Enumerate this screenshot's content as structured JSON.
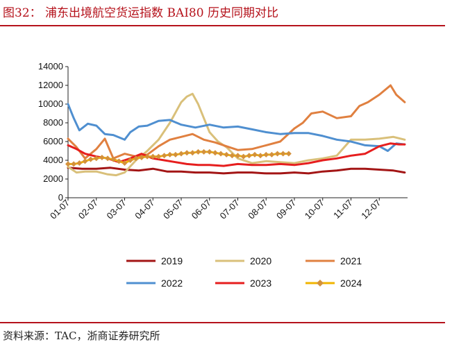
{
  "header": {
    "title": "图32： 浦东出境航空货运指数 BAI80 历史同期对比"
  },
  "footer": {
    "source": "资料来源：TAC，浙商证券研究所"
  },
  "colors": {
    "brand": "#b5121b",
    "s2019": "#a31515",
    "s2020": "#d9c07a",
    "s2021": "#e08040",
    "s2022": "#4f8fd0",
    "s2023": "#e61e1e",
    "s2024": "#f0b400",
    "s2024_marker": "#d4913a"
  },
  "chart_data": {
    "type": "line",
    "title": "浦东出境航空货运指数 BAI80 历史同期对比",
    "xlabel": "",
    "ylabel": "",
    "ylim": [
      0,
      14000
    ],
    "yticks": [
      0,
      2000,
      4000,
      6000,
      8000,
      10000,
      12000,
      14000
    ],
    "ytick_labels": [
      "0",
      "2000",
      "4000",
      "6000",
      "8000",
      "10000",
      "12000",
      "14000"
    ],
    "xlim": [
      1,
      13
    ],
    "xticks": [
      1,
      2,
      3,
      4,
      5,
      6,
      7,
      8,
      9,
      10,
      11,
      12
    ],
    "xtick_labels": [
      "01-07",
      "02-07",
      "03-07",
      "04-07",
      "05-07",
      "06-07",
      "07-07",
      "08-07",
      "09-07",
      "10-07",
      "11-07",
      "12-07"
    ],
    "legend_position": "bottom",
    "series": [
      {
        "name": "2019",
        "color_key": "s2019",
        "x": [
          1,
          1.5,
          2,
          2.5,
          3,
          3.5,
          4,
          4.5,
          5,
          5.5,
          6,
          6.5,
          7,
          7.5,
          8,
          8.5,
          9,
          9.5,
          10,
          10.5,
          11,
          11.5,
          12,
          12.5,
          12.9
        ],
        "values": [
          3200,
          3100,
          3100,
          3200,
          3000,
          2900,
          3100,
          2800,
          2800,
          2700,
          2700,
          2600,
          2700,
          2700,
          2600,
          2600,
          2700,
          2600,
          2800,
          2900,
          3100,
          3100,
          3000,
          2900,
          2700
        ]
      },
      {
        "name": "2020",
        "color_key": "s2020",
        "x": [
          1,
          1.3,
          1.6,
          2,
          2.4,
          2.7,
          3,
          3.4,
          3.8,
          4.2,
          4.6,
          5,
          5.2,
          5.4,
          5.6,
          5.8,
          6,
          6.3,
          6.6,
          7,
          7.5,
          8,
          8.5,
          9,
          9.5,
          10,
          10.5,
          11,
          11.5,
          12,
          12.5,
          12.9
        ],
        "values": [
          3300,
          2700,
          2800,
          2800,
          2500,
          2400,
          2700,
          4000,
          5000,
          6200,
          8000,
          10200,
          10800,
          11100,
          10000,
          8500,
          7000,
          6000,
          5400,
          4200,
          3700,
          3900,
          3800,
          3700,
          4000,
          4200,
          4500,
          6200,
          6200,
          6300,
          6500,
          6200
        ]
      },
      {
        "name": "2021",
        "color_key": "s2021",
        "x": [
          1,
          1.3,
          1.6,
          2,
          2.3,
          2.6,
          3,
          3.4,
          3.8,
          4.2,
          4.6,
          5,
          5.4,
          5.8,
          6.2,
          6.6,
          7,
          7.5,
          8,
          8.5,
          9,
          9.3,
          9.6,
          10,
          10.5,
          11,
          11.3,
          11.6,
          12,
          12.4,
          12.6,
          12.9
        ],
        "values": [
          6300,
          5400,
          4200,
          5200,
          6300,
          4200,
          4700,
          4400,
          4600,
          5500,
          6200,
          6500,
          6800,
          6200,
          5900,
          5500,
          5100,
          5200,
          5600,
          6000,
          7400,
          8000,
          9000,
          9200,
          8500,
          8700,
          9800,
          10200,
          11000,
          12000,
          11000,
          10200
        ]
      },
      {
        "name": "2022",
        "color_key": "s2022",
        "x": [
          1,
          1.2,
          1.4,
          1.7,
          2,
          2.3,
          2.6,
          3,
          3.2,
          3.5,
          3.8,
          4.2,
          4.6,
          5,
          5.5,
          6,
          6.5,
          7,
          7.5,
          8,
          8.5,
          9,
          9.5,
          10,
          10.5,
          11,
          11.5,
          12,
          12.3,
          12.6,
          12.9
        ],
        "values": [
          10000,
          8500,
          7200,
          7900,
          7700,
          6800,
          6700,
          6200,
          7000,
          7600,
          7700,
          8200,
          8300,
          7800,
          7500,
          7800,
          7500,
          7600,
          7300,
          7000,
          6800,
          6900,
          6900,
          6600,
          6200,
          6000,
          5600,
          5500,
          5000,
          5800,
          5700
        ]
      },
      {
        "name": "2023",
        "color_key": "s2023",
        "x": [
          1,
          1.3,
          1.6,
          2,
          2.4,
          2.8,
          3.2,
          3.6,
          4,
          4.4,
          4.8,
          5.2,
          5.6,
          6,
          6.5,
          7,
          7.5,
          8,
          8.5,
          9,
          9.5,
          10,
          10.5,
          11,
          11.5,
          12,
          12.4,
          12.7,
          12.9
        ],
        "values": [
          5600,
          5200,
          4700,
          4400,
          4200,
          3800,
          4200,
          4700,
          4200,
          4000,
          3800,
          3600,
          3500,
          3500,
          3400,
          3600,
          3500,
          3500,
          3600,
          3500,
          3700,
          4000,
          4200,
          4500,
          4700,
          5500,
          5800,
          5700,
          5700
        ]
      },
      {
        "name": "2024",
        "color_key": "s2024",
        "marker": "diamond",
        "x": [
          1,
          1.2,
          1.4,
          1.6,
          1.8,
          2,
          2.2,
          2.4,
          2.6,
          2.8,
          3,
          3.2,
          3.4,
          3.6,
          3.8,
          4,
          4.2,
          4.4,
          4.6,
          4.8,
          5,
          5.2,
          5.4,
          5.6,
          5.8,
          6,
          6.2,
          6.4,
          6.6,
          6.8,
          7,
          7.2,
          7.4,
          7.6,
          7.8,
          8,
          8.2,
          8.4,
          8.6,
          8.8
        ],
        "values": [
          3600,
          3600,
          3700,
          3900,
          4100,
          4200,
          4300,
          4200,
          4100,
          3900,
          3700,
          4000,
          4200,
          4300,
          4400,
          4400,
          4400,
          4500,
          4600,
          4600,
          4700,
          4800,
          4800,
          4900,
          4900,
          4900,
          4800,
          4700,
          4600,
          4500,
          4500,
          4400,
          4500,
          4600,
          4500,
          4600,
          4600,
          4700,
          4700,
          4700
        ]
      }
    ]
  }
}
